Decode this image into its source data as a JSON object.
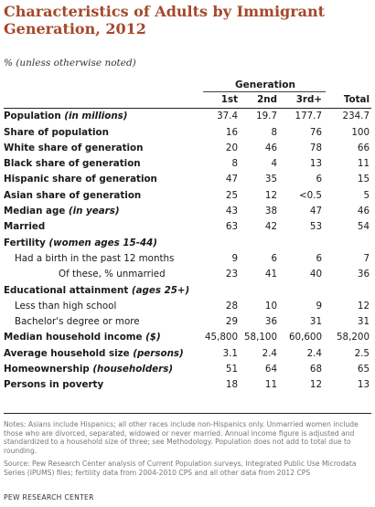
{
  "title": "Characteristics of Adults by Immigrant Generation, 2012",
  "subtitle": "% (unless otherwise noted)",
  "generation_header": "Generation",
  "columns": [
    "1st",
    "2nd",
    "3rd+",
    "Total"
  ],
  "rows": [
    {
      "label": "Population ",
      "em": "(in millions)",
      "values": [
        "37.4",
        "19.7",
        "177.7",
        "234.7"
      ],
      "style": "bold"
    },
    {
      "label": "Share of population",
      "em": "",
      "values": [
        "16",
        "8",
        "76",
        "100"
      ],
      "style": "bold"
    },
    {
      "label": "White share of generation",
      "em": "",
      "values": [
        "20",
        "46",
        "78",
        "66"
      ],
      "style": "bold"
    },
    {
      "label": "Black share of generation",
      "em": "",
      "values": [
        "8",
        "4",
        "13",
        "11"
      ],
      "style": "bold"
    },
    {
      "label": "Hispanic share of generation",
      "em": "",
      "values": [
        "47",
        "35",
        "6",
        "15"
      ],
      "style": "bold"
    },
    {
      "label": "Asian share of generation",
      "em": "",
      "values": [
        "25",
        "12",
        "<0.5",
        "5"
      ],
      "style": "bold"
    },
    {
      "label": "Median age ",
      "em": "(in years)",
      "values": [
        "43",
        "38",
        "47",
        "46"
      ],
      "style": "bold"
    },
    {
      "label": "Married",
      "em": "",
      "values": [
        "63",
        "42",
        "53",
        "54"
      ],
      "style": "bold"
    },
    {
      "label": "Fertility ",
      "em": "(women ages 15-44)",
      "values": [
        "",
        "",
        "",
        ""
      ],
      "style": "bold"
    },
    {
      "label": "Had a birth in the past 12 months",
      "em": "",
      "values": [
        "9",
        "6",
        "6",
        "7"
      ],
      "style": "sub"
    },
    {
      "label": "Of these, % unmarried",
      "em": "",
      "values": [
        "23",
        "41",
        "40",
        "36"
      ],
      "style": "sub2"
    },
    {
      "label": "Educational attainment ",
      "em": "(ages 25+)",
      "values": [
        "",
        "",
        "",
        ""
      ],
      "style": "bold"
    },
    {
      "label": "Less than high school",
      "em": "",
      "values": [
        "28",
        "10",
        "9",
        "12"
      ],
      "style": "sub"
    },
    {
      "label": "Bachelor's degree or more",
      "em": "",
      "values": [
        "29",
        "36",
        "31",
        "31"
      ],
      "style": "sub"
    },
    {
      "label": "Median household income ",
      "em": "($)",
      "values": [
        "45,800",
        "58,100",
        "60,600",
        "58,200"
      ],
      "style": "bold"
    },
    {
      "label": "Average household size ",
      "em": "(persons)",
      "values": [
        "3.1",
        "2.4",
        "2.4",
        "2.5"
      ],
      "style": "bold"
    },
    {
      "label": "Homeownership ",
      "em": "(householders)",
      "values": [
        "51",
        "64",
        "68",
        "65"
      ],
      "style": "bold"
    },
    {
      "label": "Persons in poverty",
      "em": "",
      "values": [
        "18",
        "11",
        "12",
        "13"
      ],
      "style": "bold"
    }
  ],
  "notes": "Notes: Asians include Hispanics; all other races include non-Hispanics only. Unmarried women include those who are divorced, separated, widowed or never married. Annual income figure is adjusted and standardized to a household size of three; see Methodology. Population does not add to total due to rounding.",
  "source": "Source: Pew Research Center analysis of Current Population surveys, Integrated Public Use Microdata Series (IPUMS) files; fertility data from 2004-2010 CPS and all other data from 2012 CPS",
  "organization": "PEW RESEARCH CENTER"
}
